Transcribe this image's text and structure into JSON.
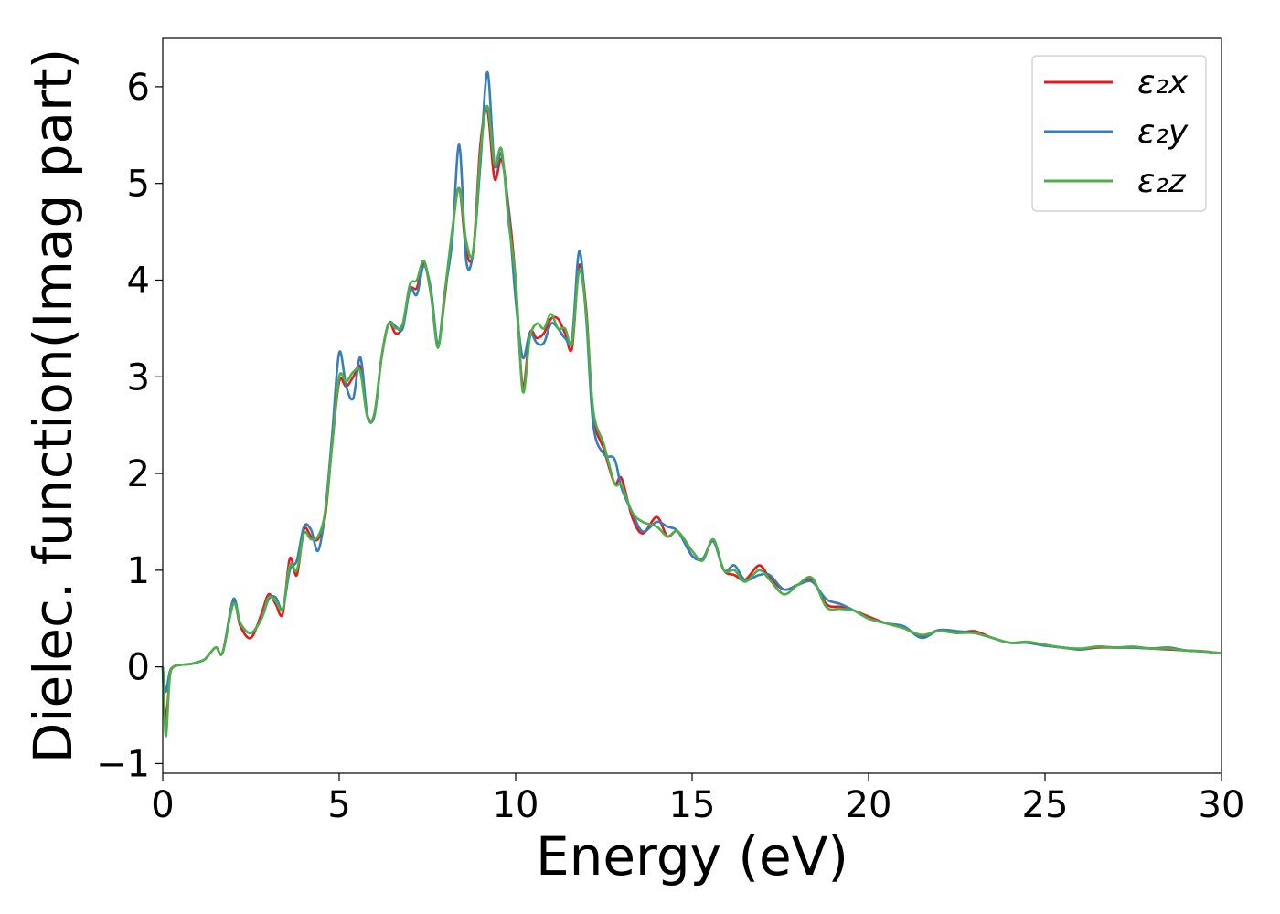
{
  "chart_data": {
    "type": "line",
    "title": "",
    "xlabel": "Energy (eV)",
    "ylabel": "Dielec. function(Imag part)",
    "xlim": [
      0,
      30
    ],
    "ylim": [
      -1.1,
      6.5
    ],
    "xticks": [
      0,
      5,
      10,
      15,
      20,
      25,
      30
    ],
    "yticks": [
      -1,
      0,
      1,
      2,
      3,
      4,
      5,
      6
    ],
    "xtick_labels": [
      "0",
      "5",
      "10",
      "15",
      "20",
      "25",
      "30"
    ],
    "ytick_labels": [
      "−1",
      "0",
      "1",
      "2",
      "3",
      "4",
      "5",
      "6"
    ],
    "grid": false,
    "legend_position": "top-right",
    "series": [
      {
        "name": "ε₂x",
        "color": "#e41a1c",
        "x": [
          0,
          0.05,
          0.1,
          0.2,
          0.3,
          0.5,
          0.8,
          1.0,
          1.2,
          1.5,
          1.7,
          2.0,
          2.2,
          2.5,
          2.8,
          3.0,
          3.2,
          3.4,
          3.6,
          3.8,
          4.0,
          4.2,
          4.4,
          4.6,
          4.8,
          5.0,
          5.2,
          5.4,
          5.6,
          5.8,
          6.0,
          6.2,
          6.4,
          6.6,
          6.8,
          7.0,
          7.2,
          7.4,
          7.6,
          7.8,
          8.0,
          8.2,
          8.4,
          8.6,
          8.8,
          9.0,
          9.2,
          9.4,
          9.6,
          9.8,
          10.0,
          10.2,
          10.4,
          10.6,
          10.8,
          11.0,
          11.2,
          11.4,
          11.6,
          11.8,
          12.0,
          12.2,
          12.5,
          12.8,
          13.0,
          13.3,
          13.6,
          14.0,
          14.3,
          14.6,
          15.0,
          15.3,
          15.6,
          15.9,
          16.2,
          16.5,
          16.9,
          17.2,
          17.6,
          18.0,
          18.4,
          18.8,
          19.2,
          19.6,
          20.0,
          20.5,
          21.0,
          21.5,
          22.0,
          22.5,
          23.0,
          23.5,
          24.0,
          24.5,
          25.0,
          25.5,
          26.0,
          26.5,
          27.0,
          27.5,
          28.0,
          28.5,
          29.0,
          29.5,
          30.0
        ],
        "y": [
          0,
          -0.4,
          -0.55,
          -0.1,
          0,
          0.02,
          0.03,
          0.05,
          0.08,
          0.2,
          0.15,
          0.68,
          0.42,
          0.3,
          0.55,
          0.75,
          0.65,
          0.55,
          1.12,
          0.95,
          1.42,
          1.35,
          1.32,
          1.55,
          2.3,
          2.95,
          2.9,
          3.0,
          3.1,
          2.6,
          2.62,
          3.2,
          3.55,
          3.45,
          3.52,
          3.9,
          3.92,
          4.18,
          3.85,
          3.35,
          3.85,
          4.5,
          4.95,
          4.3,
          4.3,
          5.4,
          5.75,
          5.05,
          5.25,
          4.75,
          4.0,
          2.9,
          3.45,
          3.4,
          3.45,
          3.6,
          3.6,
          3.45,
          3.3,
          4.15,
          3.7,
          2.6,
          2.25,
          1.9,
          1.95,
          1.55,
          1.38,
          1.55,
          1.35,
          1.4,
          1.15,
          1.12,
          1.3,
          1.0,
          0.95,
          0.9,
          1.05,
          0.92,
          0.8,
          0.85,
          0.9,
          0.65,
          0.62,
          0.58,
          0.52,
          0.45,
          0.4,
          0.32,
          0.38,
          0.35,
          0.37,
          0.3,
          0.25,
          0.25,
          0.22,
          0.2,
          0.18,
          0.2,
          0.2,
          0.2,
          0.19,
          0.18,
          0.17,
          0.16,
          0.14
        ]
      },
      {
        "name": "ε₂y",
        "color": "#377eb8",
        "x": [
          0,
          0.05,
          0.1,
          0.2,
          0.3,
          0.5,
          0.8,
          1.0,
          1.2,
          1.5,
          1.7,
          2.0,
          2.2,
          2.5,
          2.8,
          3.0,
          3.2,
          3.4,
          3.6,
          3.8,
          4.0,
          4.2,
          4.4,
          4.6,
          4.8,
          5.0,
          5.2,
          5.4,
          5.6,
          5.8,
          6.0,
          6.2,
          6.4,
          6.6,
          6.8,
          7.0,
          7.2,
          7.4,
          7.6,
          7.8,
          8.0,
          8.2,
          8.4,
          8.6,
          8.8,
          9.0,
          9.2,
          9.4,
          9.6,
          9.8,
          10.0,
          10.2,
          10.4,
          10.6,
          10.8,
          11.0,
          11.2,
          11.4,
          11.6,
          11.8,
          12.0,
          12.2,
          12.5,
          12.8,
          13.0,
          13.3,
          13.6,
          14.0,
          14.3,
          14.6,
          15.0,
          15.3,
          15.6,
          15.9,
          16.2,
          16.5,
          16.9,
          17.2,
          17.6,
          18.0,
          18.4,
          18.8,
          19.2,
          19.6,
          20.0,
          20.5,
          21.0,
          21.5,
          22.0,
          22.5,
          23.0,
          23.5,
          24.0,
          24.5,
          25.0,
          25.5,
          26.0,
          26.5,
          27.0,
          27.5,
          28.0,
          28.5,
          29.0,
          29.5,
          30.0
        ],
        "y": [
          0,
          -0.2,
          -0.25,
          -0.05,
          0,
          0.02,
          0.03,
          0.05,
          0.08,
          0.2,
          0.15,
          0.7,
          0.45,
          0.35,
          0.5,
          0.7,
          0.72,
          0.6,
          1.0,
          1.1,
          1.45,
          1.42,
          1.2,
          1.6,
          2.4,
          3.25,
          2.9,
          2.78,
          3.2,
          2.6,
          2.6,
          3.2,
          3.55,
          3.52,
          3.5,
          3.9,
          3.85,
          4.15,
          3.9,
          3.35,
          3.9,
          4.4,
          5.4,
          4.2,
          4.3,
          5.2,
          6.15,
          5.2,
          5.3,
          4.7,
          3.8,
          3.2,
          3.45,
          3.35,
          3.35,
          3.55,
          3.5,
          3.4,
          3.4,
          4.3,
          3.6,
          2.5,
          2.2,
          2.15,
          1.85,
          1.6,
          1.4,
          1.5,
          1.45,
          1.4,
          1.15,
          1.12,
          1.3,
          1.0,
          1.05,
          0.9,
          0.95,
          0.95,
          0.8,
          0.85,
          0.88,
          0.7,
          0.65,
          0.58,
          0.5,
          0.45,
          0.42,
          0.3,
          0.38,
          0.37,
          0.35,
          0.3,
          0.25,
          0.25,
          0.22,
          0.2,
          0.18,
          0.21,
          0.2,
          0.2,
          0.19,
          0.2,
          0.17,
          0.16,
          0.14
        ]
      },
      {
        "name": "ε₂z",
        "color": "#4daf4a",
        "x": [
          0,
          0.05,
          0.1,
          0.2,
          0.3,
          0.5,
          0.8,
          1.0,
          1.2,
          1.5,
          1.7,
          2.0,
          2.2,
          2.5,
          2.8,
          3.0,
          3.2,
          3.4,
          3.6,
          3.8,
          4.0,
          4.2,
          4.4,
          4.6,
          4.8,
          5.0,
          5.2,
          5.4,
          5.6,
          5.8,
          6.0,
          6.2,
          6.4,
          6.6,
          6.8,
          7.0,
          7.2,
          7.4,
          7.6,
          7.8,
          8.0,
          8.2,
          8.4,
          8.6,
          8.8,
          9.0,
          9.2,
          9.4,
          9.6,
          9.8,
          10.0,
          10.2,
          10.4,
          10.6,
          10.8,
          11.0,
          11.2,
          11.4,
          11.6,
          11.8,
          12.0,
          12.2,
          12.5,
          12.8,
          13.0,
          13.3,
          13.6,
          14.0,
          14.3,
          14.6,
          15.0,
          15.3,
          15.6,
          15.9,
          16.2,
          16.5,
          16.9,
          17.2,
          17.6,
          18.0,
          18.4,
          18.8,
          19.2,
          19.6,
          20.0,
          20.5,
          21.0,
          21.5,
          22.0,
          22.5,
          23.0,
          23.5,
          24.0,
          24.5,
          25.0,
          25.5,
          26.0,
          26.5,
          27.0,
          27.5,
          28.0,
          28.5,
          29.0,
          29.5,
          30.0
        ],
        "y": [
          0,
          -0.5,
          -0.7,
          -0.1,
          0,
          0.02,
          0.03,
          0.05,
          0.08,
          0.2,
          0.15,
          0.65,
          0.45,
          0.35,
          0.5,
          0.72,
          0.68,
          0.6,
          1.05,
          1.0,
          1.38,
          1.32,
          1.35,
          1.6,
          2.3,
          3.0,
          2.95,
          3.05,
          3.05,
          2.58,
          2.62,
          3.2,
          3.55,
          3.5,
          3.55,
          3.95,
          4.0,
          4.2,
          3.85,
          3.3,
          3.9,
          4.5,
          4.95,
          4.4,
          4.3,
          5.3,
          5.8,
          5.2,
          5.35,
          4.6,
          4.0,
          2.85,
          3.4,
          3.55,
          3.5,
          3.65,
          3.5,
          3.5,
          3.35,
          4.1,
          3.65,
          2.65,
          2.3,
          1.9,
          1.88,
          1.6,
          1.5,
          1.45,
          1.35,
          1.4,
          1.2,
          1.1,
          1.32,
          1.0,
          1.0,
          0.88,
          1.0,
          0.9,
          0.75,
          0.85,
          0.92,
          0.62,
          0.6,
          0.58,
          0.5,
          0.45,
          0.4,
          0.33,
          0.37,
          0.35,
          0.35,
          0.3,
          0.25,
          0.26,
          0.23,
          0.2,
          0.19,
          0.21,
          0.2,
          0.21,
          0.19,
          0.19,
          0.17,
          0.16,
          0.14
        ]
      }
    ]
  }
}
